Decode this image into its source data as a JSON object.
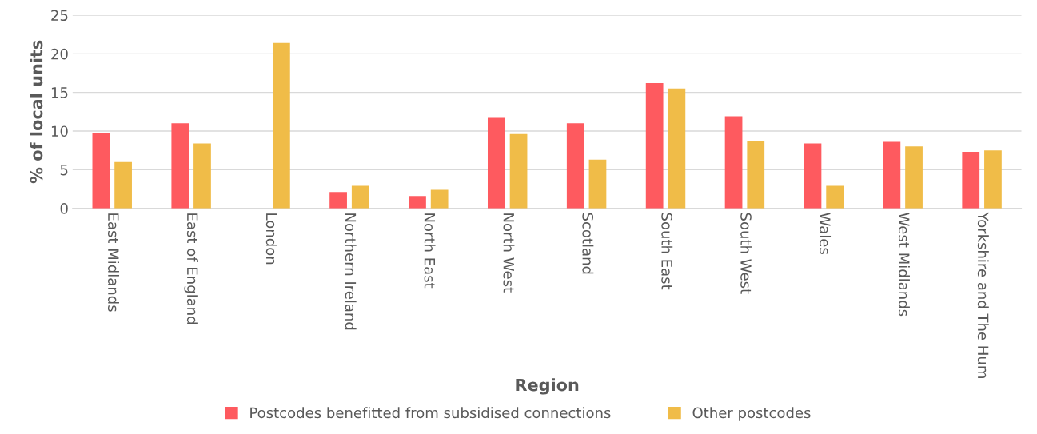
{
  "chart_data": {
    "type": "bar",
    "xlabel": "Region",
    "ylabel": "% of local units",
    "categories": [
      "East Midlands",
      "East of England",
      "London",
      "Northern Ireland",
      "North East",
      "North West",
      "Scotland",
      "South East",
      "South West",
      "Wales",
      "West Midlands",
      "Yorkshire and The Hum"
    ],
    "series": [
      {
        "name": "Postcodes benefitted from subsidised connections",
        "color": "#fe5a5f",
        "values": [
          9.7,
          11.0,
          0,
          2.1,
          1.6,
          11.7,
          11.0,
          16.2,
          11.9,
          8.4,
          8.6,
          7.3
        ]
      },
      {
        "name": "Other postcodes",
        "color": "#f0bc48",
        "values": [
          6.0,
          8.4,
          21.4,
          2.9,
          2.4,
          9.6,
          6.3,
          15.5,
          8.7,
          2.9,
          8.0,
          7.5
        ]
      }
    ],
    "ylim": [
      0,
      25
    ],
    "yticks": [
      0,
      5,
      10,
      15,
      20,
      25
    ],
    "grid": "y",
    "legend": "bottom"
  }
}
